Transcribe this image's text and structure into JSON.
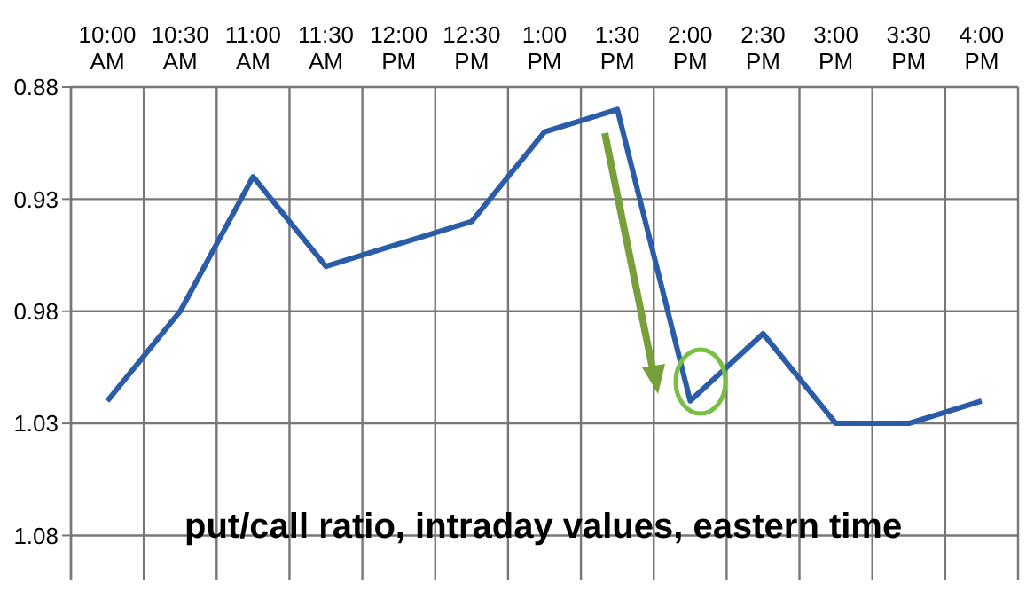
{
  "chart_data": {
    "type": "line",
    "categories": [
      "10:00 AM",
      "10:30 AM",
      "11:00 AM",
      "11:30 AM",
      "12:00 PM",
      "12:30 PM",
      "1:00 PM",
      "1:30 PM",
      "2:00 PM",
      "2:30 PM",
      "3:00 PM",
      "3:30 PM",
      "4:00 PM"
    ],
    "series": [
      {
        "color": "#2b5ca8",
        "values": [
          1.02,
          0.98,
          0.92,
          0.96,
          0.95,
          0.94,
          0.9,
          0.89,
          1.02,
          0.99,
          1.03,
          1.03,
          1.02
        ]
      }
    ],
    "ylim": [
      1.1,
      0.88
    ],
    "yticks": [
      0.88,
      0.93,
      0.98,
      1.03,
      1.08
    ],
    "grid": true,
    "marker": "none",
    "line_style": "solid",
    "annotations": [
      "put/call ratio, intraday values, eastern time"
    ]
  }
}
